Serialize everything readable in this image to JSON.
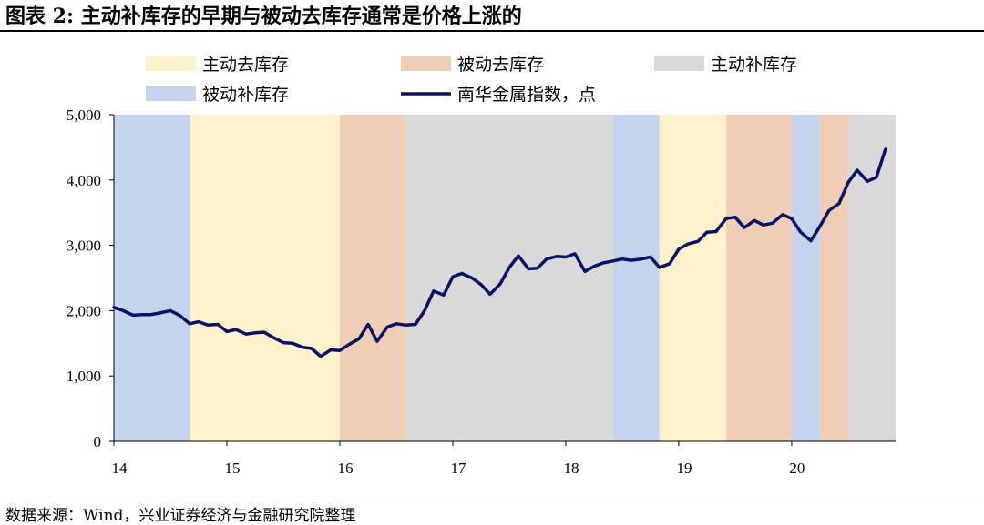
{
  "figure": {
    "title": "图表 2:  主动补库存的早期与被动去库存通常是价格上涨的",
    "source": "数据来源：Wind，兴业证券经济与金融研究院整理"
  },
  "chart_data": {
    "type": "line",
    "title": "",
    "xlabel": "",
    "ylabel": "",
    "ylim": [
      0,
      5000
    ],
    "xlim": [
      2014.0,
      2020.92
    ],
    "yticks": [
      0,
      1000,
      2000,
      3000,
      4000,
      5000
    ],
    "ytick_labels": [
      "0",
      "1,000",
      "2,000",
      "3,000",
      "4,000",
      "5,000"
    ],
    "xticks": [
      2014,
      2015,
      2016,
      2017,
      2018,
      2019,
      2020
    ],
    "xtick_labels": [
      "14",
      "15",
      "16",
      "17",
      "18",
      "19",
      "20"
    ],
    "grid": false,
    "legend_placement": "top",
    "legend": [
      {
        "label": "主动去库存",
        "kind": "area",
        "color": "#fff2cc"
      },
      {
        "label": "被动去库存",
        "kind": "area",
        "color": "#f0cdb6"
      },
      {
        "label": "主动补库存",
        "kind": "area",
        "color": "#d9d9d9"
      },
      {
        "label": "被动补库存",
        "kind": "area",
        "color": "#c5d3ed"
      },
      {
        "label": "南华金属指数，点",
        "kind": "line",
        "color": "#0b1263"
      }
    ],
    "regimes": [
      {
        "name": "被动补库存",
        "color": "#c5d3ed",
        "start": 2014.0,
        "end": 2014.67
      },
      {
        "name": "主动去库存",
        "color": "#fff2cc",
        "start": 2014.67,
        "end": 2016.0
      },
      {
        "name": "被动去库存",
        "color": "#f0cdb6",
        "start": 2016.0,
        "end": 2016.58
      },
      {
        "name": "主动补库存",
        "color": "#d9d9d9",
        "start": 2016.58,
        "end": 2018.42
      },
      {
        "name": "被动补库存",
        "color": "#c5d3ed",
        "start": 2018.42,
        "end": 2018.83
      },
      {
        "name": "主动去库存",
        "color": "#fff2cc",
        "start": 2018.83,
        "end": 2019.42
      },
      {
        "name": "被动去库存",
        "color": "#f0cdb6",
        "start": 2019.42,
        "end": 2020.0
      },
      {
        "name": "被动补库存",
        "color": "#c5d3ed",
        "start": 2020.0,
        "end": 2020.25
      },
      {
        "name": "被动去库存",
        "color": "#f0cdb6",
        "start": 2020.25,
        "end": 2020.5
      },
      {
        "name": "主动补库存",
        "color": "#d9d9d9",
        "start": 2020.5,
        "end": 2020.92
      }
    ],
    "series": [
      {
        "name": "南华金属指数，点",
        "color": "#0b1263",
        "x": [
          2014.0,
          2014.08,
          2014.17,
          2014.25,
          2014.33,
          2014.42,
          2014.5,
          2014.58,
          2014.67,
          2014.75,
          2014.83,
          2014.92,
          2015.0,
          2015.08,
          2015.17,
          2015.25,
          2015.33,
          2015.42,
          2015.5,
          2015.58,
          2015.67,
          2015.75,
          2015.83,
          2015.92,
          2016.0,
          2016.08,
          2016.17,
          2016.25,
          2016.33,
          2016.42,
          2016.5,
          2016.58,
          2016.67,
          2016.75,
          2016.83,
          2016.92,
          2017.0,
          2017.08,
          2017.17,
          2017.25,
          2017.33,
          2017.42,
          2017.5,
          2017.58,
          2017.67,
          2017.75,
          2017.83,
          2017.92,
          2018.0,
          2018.08,
          2018.17,
          2018.25,
          2018.33,
          2018.42,
          2018.5,
          2018.58,
          2018.67,
          2018.75,
          2018.83,
          2018.92,
          2019.0,
          2019.08,
          2019.17,
          2019.25,
          2019.33,
          2019.42,
          2019.5,
          2019.58,
          2019.67,
          2019.75,
          2019.83,
          2019.92,
          2020.0,
          2020.08,
          2020.17,
          2020.25,
          2020.33,
          2020.42,
          2020.5,
          2020.58,
          2020.67,
          2020.75,
          2020.83
        ],
        "y": [
          2050,
          2000,
          1930,
          1940,
          1940,
          1970,
          2000,
          1930,
          1800,
          1830,
          1780,
          1790,
          1680,
          1710,
          1640,
          1660,
          1670,
          1580,
          1510,
          1500,
          1440,
          1420,
          1300,
          1400,
          1390,
          1480,
          1570,
          1790,
          1530,
          1750,
          1800,
          1780,
          1790,
          2000,
          2300,
          2240,
          2520,
          2570,
          2500,
          2400,
          2250,
          2410,
          2660,
          2840,
          2640,
          2650,
          2790,
          2830,
          2820,
          2870,
          2600,
          2680,
          2730,
          2760,
          2790,
          2770,
          2790,
          2820,
          2660,
          2720,
          2940,
          3020,
          3060,
          3200,
          3210,
          3410,
          3430,
          3270,
          3380,
          3310,
          3340,
          3470,
          3410,
          3200,
          3070,
          3290,
          3530,
          3640,
          3960,
          4150,
          3980,
          4040,
          4470
        ]
      }
    ]
  }
}
